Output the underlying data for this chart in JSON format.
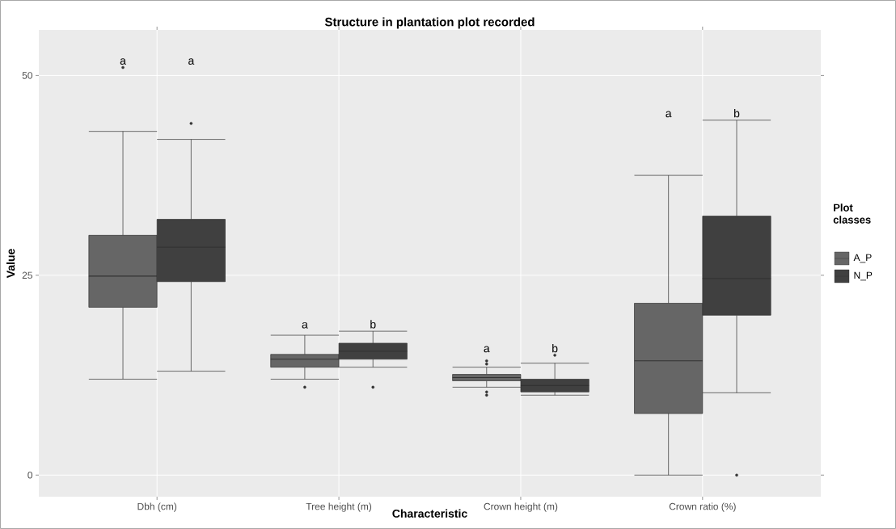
{
  "chart_data": {
    "type": "box",
    "title": "Structure in plantation plot recorded",
    "xlabel": "Characteristic",
    "ylabel": "Value",
    "legend_title": "Plot classes",
    "categories": [
      "Dbh (cm)",
      "Tree height (m)",
      "Crown height (m)",
      "Crown ratio (%)"
    ],
    "series": [
      {
        "name": "A_P",
        "color": "#666666",
        "boxes": [
          {
            "low": 12.0,
            "q1": 21.0,
            "median": 24.9,
            "q3": 30.0,
            "high": 43.0,
            "outliers": [
              51.0
            ]
          },
          {
            "low": 12.0,
            "q1": 13.5,
            "median": 14.5,
            "q3": 15.1,
            "high": 17.5,
            "outliers": [
              11.0
            ]
          },
          {
            "low": 11.0,
            "q1": 11.8,
            "median": 12.2,
            "q3": 12.6,
            "high": 13.5,
            "outliers": [
              14.3,
              13.9,
              10.4,
              10.0
            ]
          },
          {
            "low": 0.0,
            "q1": 7.7,
            "median": 14.3,
            "q3": 21.5,
            "high": 37.5
          }
        ]
      },
      {
        "name": "N_P",
        "color": "#404040",
        "boxes": [
          {
            "low": 13.0,
            "q1": 24.2,
            "median": 28.5,
            "q3": 32.0,
            "high": 42.0,
            "outliers": [
              44.0
            ]
          },
          {
            "low": 13.5,
            "q1": 14.5,
            "median": 15.5,
            "q3": 16.5,
            "high": 18.0,
            "outliers": [
              11.0
            ]
          },
          {
            "low": 10.0,
            "q1": 10.4,
            "median": 11.2,
            "q3": 12.0,
            "high": 14.0,
            "outliers": [
              15.0
            ]
          },
          {
            "low": 10.3,
            "q1": 20.0,
            "median": 24.6,
            "q3": 32.4,
            "high": 44.4,
            "outliers": [
              0.0
            ]
          }
        ]
      }
    ],
    "annotations": [
      "a",
      "a",
      "a",
      "b",
      "a",
      "b",
      "a",
      "b"
    ],
    "ylim": [
      -2.7,
      55.7
    ],
    "yticks": [
      0,
      25,
      50
    ],
    "grid": true,
    "legend": "right"
  }
}
